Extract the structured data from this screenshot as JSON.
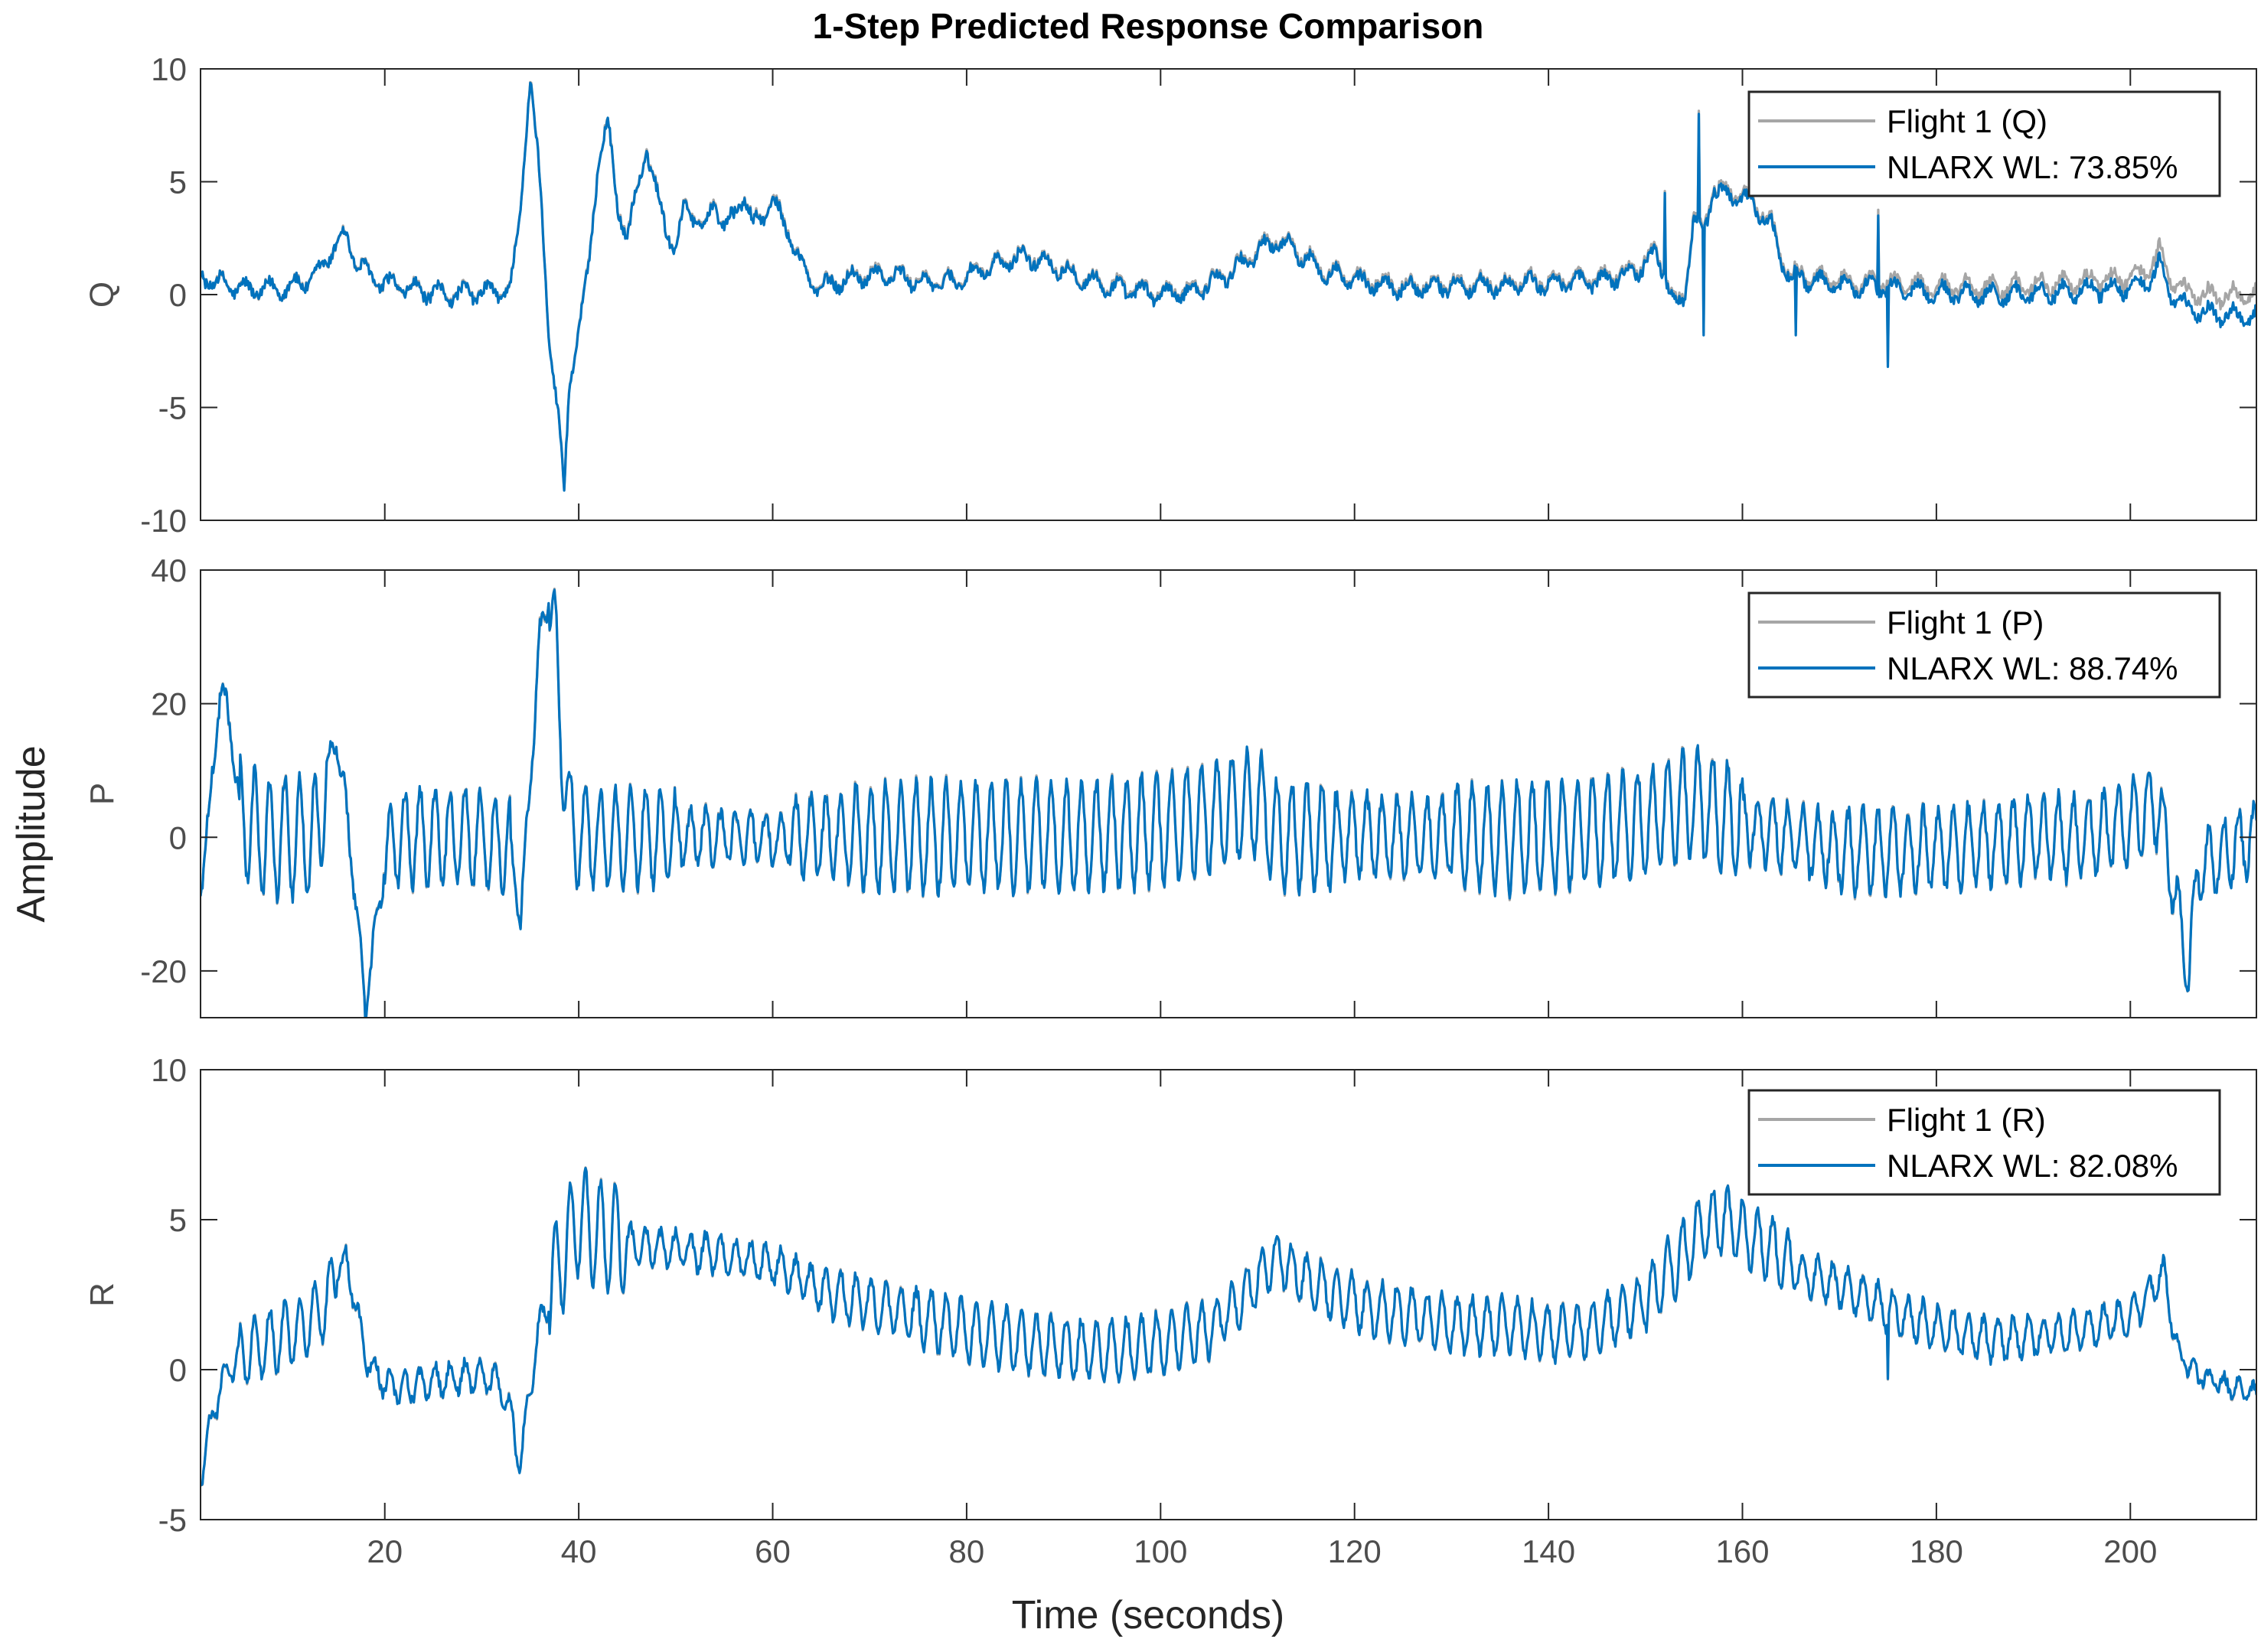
{
  "chart_data": {
    "type": "line",
    "title": "1-Step Predicted Response Comparison",
    "xlabel": "Time (seconds)",
    "ylabel": "Amplitude",
    "xlim": [
      1,
      213
    ],
    "xticks": [
      20,
      40,
      60,
      80,
      100,
      120,
      140,
      160,
      180,
      200
    ],
    "colors": {
      "measured": "#a6a6a6",
      "model": "#0072bd",
      "axis": "#262626",
      "tick_text": "#4d4d4d"
    },
    "legend_position": "top-right",
    "panels": [
      {
        "name": "q-panel",
        "ylabel": "Q",
        "ylim": [
          -10,
          10
        ],
        "yticks": [
          -10,
          -5,
          0,
          5,
          10
        ],
        "legend": [
          "Flight 1 (Q)",
          "NLARX WL: 73.85%"
        ],
        "keypoints": [
          [
            1,
            0.8
          ],
          [
            3,
            0.5
          ],
          [
            6,
            0.2
          ],
          [
            10,
            0.3
          ],
          [
            13,
            0.8
          ],
          [
            15,
            2.3
          ],
          [
            16,
            2.6
          ],
          [
            17,
            1.5
          ],
          [
            19,
            0.6
          ],
          [
            22,
            0.3
          ],
          [
            26,
            0.0
          ],
          [
            30,
            0.1
          ],
          [
            33,
            0.2
          ],
          [
            34,
            4.0
          ],
          [
            35,
            9.5
          ],
          [
            36,
            5.0
          ],
          [
            37,
            -2.0
          ],
          [
            38,
            -6.0
          ],
          [
            38.5,
            -8.8
          ],
          [
            39,
            -4.0
          ],
          [
            40,
            -1.5
          ],
          [
            41,
            1.0
          ],
          [
            42,
            6.0
          ],
          [
            43,
            7.5
          ],
          [
            44,
            4.0
          ],
          [
            45,
            2.5
          ],
          [
            46,
            4.5
          ],
          [
            47,
            6.5
          ],
          [
            48,
            4.5
          ],
          [
            49,
            3.0
          ],
          [
            50,
            2.0
          ],
          [
            51,
            4.0
          ],
          [
            52,
            3.5
          ],
          [
            53,
            2.8
          ],
          [
            54,
            4.2
          ],
          [
            55,
            3.0
          ],
          [
            56,
            3.4
          ],
          [
            57,
            4.5
          ],
          [
            58,
            3.0
          ],
          [
            59,
            3.5
          ],
          [
            60,
            4.2
          ],
          [
            61,
            3.2
          ],
          [
            62,
            2.5
          ],
          [
            63,
            1.2
          ],
          [
            64,
            0.5
          ],
          [
            65,
            0.3
          ],
          [
            67,
            0.6
          ],
          [
            70,
            0.9
          ],
          [
            73,
            0.8
          ],
          [
            76,
            0.5
          ],
          [
            79,
            0.6
          ],
          [
            83,
            1.3
          ],
          [
            86,
            1.7
          ],
          [
            89,
            1.3
          ],
          [
            92,
            0.7
          ],
          [
            95,
            0.3
          ],
          [
            100,
            0.0
          ],
          [
            103,
            0.1
          ],
          [
            107,
            0.9
          ],
          [
            110,
            1.9
          ],
          [
            112,
            2.4
          ],
          [
            114,
            1.9
          ],
          [
            117,
            1.0
          ],
          [
            120,
            0.6
          ],
          [
            125,
            0.3
          ],
          [
            130,
            0.4
          ],
          [
            135,
            0.4
          ],
          [
            140,
            0.5
          ],
          [
            145,
            0.6
          ],
          [
            149,
            1.0
          ],
          [
            151,
            1.8
          ],
          [
            152,
            1.0
          ],
          [
            153,
            -0.6
          ],
          [
            154,
            -0.2
          ],
          [
            155,
            3.5
          ],
          [
            156,
            2.5
          ],
          [
            157,
            4.8
          ],
          [
            158,
            4.4
          ],
          [
            160,
            4.3
          ],
          [
            162,
            3.6
          ],
          [
            163,
            3.0
          ],
          [
            164,
            1.5
          ],
          [
            165,
            0.8
          ],
          [
            170,
            0.4
          ],
          [
            175,
            0.3
          ],
          [
            180,
            0.1
          ],
          [
            185,
            0.0
          ],
          [
            190,
            0.0
          ],
          [
            195,
            0.2
          ],
          [
            200,
            0.3
          ],
          [
            202,
            0.6
          ],
          [
            203,
            1.4
          ],
          [
            204,
            0.2
          ],
          [
            206,
            -0.7
          ],
          [
            210,
            -0.9
          ],
          [
            213,
            -1.0
          ]
        ],
        "spikes": [
          [
            152,
            4.5
          ],
          [
            155.5,
            8.0
          ],
          [
            156,
            -1.8
          ],
          [
            165.5,
            -1.8
          ],
          [
            174,
            3.5
          ],
          [
            175,
            -3.2
          ]
        ],
        "measured_offset": [
          [
            165,
            0.15
          ],
          [
            200,
            0.45
          ],
          [
            213,
            1.0
          ]
        ],
        "osc": {
          "amp": 0.35,
          "period": 2.5,
          "noise": 0.25
        }
      },
      {
        "name": "p-panel",
        "ylabel": "P",
        "ylim": [
          -27,
          40
        ],
        "yticks": [
          -20,
          0,
          20,
          40
        ],
        "legend": [
          "Flight 1 (P)",
          "NLARX WL: 88.74%"
        ],
        "keypoints": [
          [
            1,
            -7
          ],
          [
            2,
            5
          ],
          [
            3,
            22
          ],
          [
            4,
            18
          ],
          [
            5,
            4
          ],
          [
            7,
            0
          ],
          [
            10,
            0
          ],
          [
            13,
            0
          ],
          [
            14,
            10
          ],
          [
            15,
            15
          ],
          [
            16,
            5
          ],
          [
            17,
            -10
          ],
          [
            18,
            -26
          ],
          [
            19,
            -14
          ],
          [
            20,
            -4
          ],
          [
            21,
            0
          ],
          [
            25,
            0
          ],
          [
            30,
            0
          ],
          [
            33,
            -2
          ],
          [
            34,
            -12
          ],
          [
            35,
            8
          ],
          [
            36,
            30
          ],
          [
            37,
            37
          ],
          [
            38,
            20
          ],
          [
            39,
            2
          ],
          [
            40,
            0
          ],
          [
            45,
            0
          ],
          [
            50,
            0
          ],
          [
            55,
            0
          ],
          [
            60,
            0
          ],
          [
            64,
            0
          ],
          [
            70,
            0
          ],
          [
            80,
            0
          ],
          [
            90,
            0
          ],
          [
            100,
            1
          ],
          [
            105,
            3
          ],
          [
            110,
            5
          ],
          [
            111,
            3
          ],
          [
            112,
            0
          ],
          [
            120,
            0
          ],
          [
            130,
            0
          ],
          [
            140,
            0
          ],
          [
            150,
            2
          ],
          [
            155,
            5
          ],
          [
            160,
            2
          ],
          [
            165,
            0
          ],
          [
            170,
            -2
          ],
          [
            180,
            -2
          ],
          [
            190,
            0
          ],
          [
            195,
            0
          ],
          [
            200,
            2
          ],
          [
            203,
            5
          ],
          [
            205,
            -12
          ],
          [
            206,
            -20
          ],
          [
            207,
            -5
          ],
          [
            210,
            -2
          ],
          [
            213,
            0
          ]
        ],
        "osc_segments": [
          [
            1,
            5,
            2
          ],
          [
            5,
            14,
            9
          ],
          [
            14,
            20,
            2
          ],
          [
            20,
            33,
            7
          ],
          [
            33,
            37,
            2
          ],
          [
            37,
            40,
            8
          ],
          [
            40,
            50,
            7
          ],
          [
            50,
            62,
            4
          ],
          [
            62,
            68,
            6
          ],
          [
            68,
            110,
            8
          ],
          [
            110,
            118,
            8
          ],
          [
            118,
            130,
            6
          ],
          [
            130,
            145,
            8
          ],
          [
            145,
            160,
            8
          ],
          [
            160,
            170,
            5
          ],
          [
            170,
            180,
            6
          ],
          [
            180,
            203,
            6
          ],
          [
            203,
            213,
            5
          ]
        ],
        "osc": {
          "amp": 1,
          "period": 1.55,
          "noise": 1.2
        }
      },
      {
        "name": "r-panel",
        "ylabel": "R",
        "ylim": [
          -5,
          10
        ],
        "yticks": [
          -5,
          0,
          5,
          10
        ],
        "legend": [
          "Flight 1 (R)",
          "NLARX WL: 82.08%"
        ],
        "keypoints": [
          [
            1,
            -3.5
          ],
          [
            2,
            -2.0
          ],
          [
            3,
            -0.5
          ],
          [
            5,
            0.5
          ],
          [
            8,
            0.9
          ],
          [
            11,
            1.3
          ],
          [
            14,
            2.2
          ],
          [
            15,
            3.3
          ],
          [
            16,
            3.6
          ],
          [
            17,
            2.2
          ],
          [
            18,
            0.4
          ],
          [
            20,
            -0.5
          ],
          [
            22,
            -0.6
          ],
          [
            26,
            -0.3
          ],
          [
            30,
            -0.2
          ],
          [
            32,
            -0.5
          ],
          [
            33,
            -1.5
          ],
          [
            34,
            -3.2
          ],
          [
            35,
            -0.5
          ],
          [
            36,
            1.5
          ],
          [
            38,
            3.5
          ],
          [
            40,
            5.0
          ],
          [
            42,
            4.5
          ],
          [
            45,
            4.2
          ],
          [
            50,
            4.0
          ],
          [
            55,
            3.8
          ],
          [
            60,
            3.5
          ],
          [
            63,
            3.0
          ],
          [
            66,
            2.5
          ],
          [
            70,
            2.2
          ],
          [
            75,
            1.8
          ],
          [
            80,
            1.3
          ],
          [
            85,
            1.0
          ],
          [
            90,
            0.7
          ],
          [
            95,
            0.6
          ],
          [
            100,
            0.9
          ],
          [
            105,
            1.3
          ],
          [
            108,
            2.2
          ],
          [
            110,
            3.0
          ],
          [
            112,
            3.8
          ],
          [
            114,
            3.2
          ],
          [
            118,
            2.5
          ],
          [
            122,
            2.0
          ],
          [
            126,
            1.8
          ],
          [
            130,
            1.5
          ],
          [
            135,
            1.5
          ],
          [
            140,
            1.2
          ],
          [
            145,
            1.4
          ],
          [
            150,
            2.3
          ],
          [
            153,
            3.5
          ],
          [
            156,
            4.8
          ],
          [
            158,
            5.0
          ],
          [
            160,
            4.6
          ],
          [
            163,
            4.0
          ],
          [
            166,
            3.2
          ],
          [
            170,
            2.8
          ],
          [
            175,
            2.0
          ],
          [
            180,
            1.4
          ],
          [
            185,
            1.0
          ],
          [
            190,
            1.1
          ],
          [
            195,
            1.3
          ],
          [
            200,
            1.8
          ],
          [
            202,
            2.5
          ],
          [
            203.5,
            3.5
          ],
          [
            204,
            2.0
          ],
          [
            205,
            0.5
          ],
          [
            207,
            -0.2
          ],
          [
            210,
            -0.5
          ],
          [
            213,
            -0.8
          ]
        ],
        "spikes": [
          [
            175,
            -0.3
          ]
        ],
        "osc_segments": [
          [
            1,
            5,
            0.5
          ],
          [
            5,
            15,
            1.1
          ],
          [
            15,
            20,
            0.4
          ],
          [
            20,
            33,
            0.5
          ],
          [
            33,
            37,
            0.5
          ],
          [
            37,
            45,
            1.8
          ],
          [
            45,
            55,
            0.6
          ],
          [
            55,
            65,
            0.6
          ],
          [
            65,
            75,
            0.8
          ],
          [
            75,
            105,
            1.0
          ],
          [
            105,
            115,
            0.8
          ],
          [
            115,
            130,
            0.9
          ],
          [
            130,
            150,
            0.9
          ],
          [
            150,
            165,
            1.1
          ],
          [
            165,
            190,
            0.7
          ],
          [
            190,
            203,
            0.6
          ],
          [
            203,
            213,
            0.3
          ]
        ],
        "osc": {
          "amp": 1,
          "period": 1.55,
          "noise": 0.18
        }
      }
    ]
  }
}
